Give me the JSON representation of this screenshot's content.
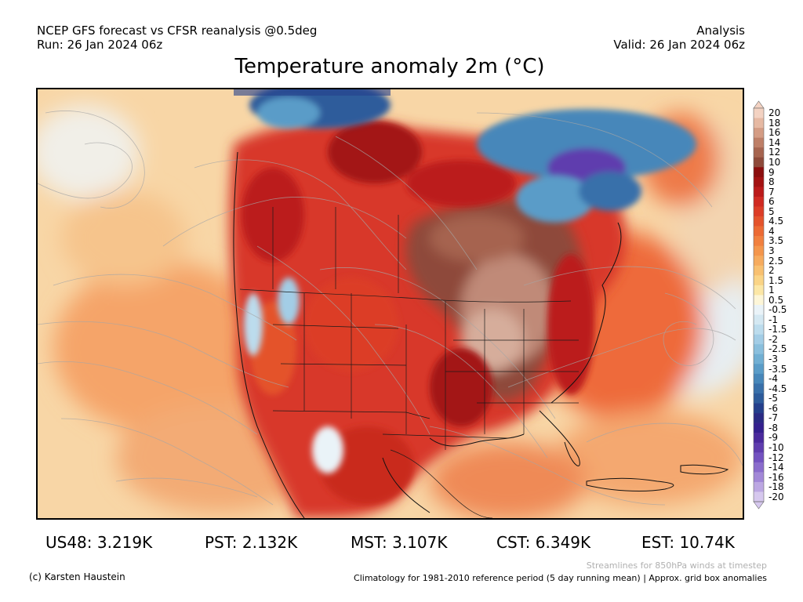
{
  "header": {
    "left_line1": "NCEP GFS forecast vs CFSR reanalysis @0.5deg",
    "left_line2": "Run: 26 Jan 2024 06z",
    "right_line1": "Analysis",
    "right_line2": "Valid: 26 Jan 2024 06z"
  },
  "title": "Temperature anomaly 2m (°C)",
  "legend": {
    "labels": [
      "20",
      "18",
      "16",
      "14",
      "12",
      "10",
      "9",
      "8",
      "7",
      "6",
      "5",
      "4.5",
      "4",
      "3.5",
      "3",
      "2.5",
      "2",
      "1.5",
      "1",
      "0.5",
      "-0.5",
      "-1",
      "-1.5",
      "-2",
      "-2.5",
      "-3",
      "-3.5",
      "-4",
      "-4.5",
      "-5",
      "-6",
      "-7",
      "-8",
      "-9",
      "-10",
      "-12",
      "-14",
      "-16",
      "-18",
      "-20"
    ],
    "colors": [
      "#f3d2c2",
      "#e6b9a3",
      "#d49c84",
      "#be7f67",
      "#a6644f",
      "#8e4a3a",
      "#8b0e0e",
      "#a31212",
      "#bb1a1a",
      "#d02a22",
      "#dc3d27",
      "#e4532c",
      "#ec6a34",
      "#f1803f",
      "#f4964c",
      "#f6ab5e",
      "#f8c070",
      "#fad486",
      "#fce7a6",
      "#fdf6d8",
      "#eaf3f8",
      "#d4e8f2",
      "#bcdced",
      "#a3cde6",
      "#8abfdd",
      "#71afd3",
      "#5a9cc8",
      "#4787ba",
      "#3970aa",
      "#2d5b9b",
      "#243f8c",
      "#2a2a84",
      "#34208e",
      "#4a2a9c",
      "#5f3dae",
      "#7352c0",
      "#8a6ccc",
      "#a288d7",
      "#bca7e2",
      "#d6c8ee"
    ]
  },
  "stats": [
    {
      "label": "US48: 3.219K"
    },
    {
      "label": "PST: 2.132K"
    },
    {
      "label": "MST: 3.107K"
    },
    {
      "label": "CST: 6.349K"
    },
    {
      "label": "EST: 10.74K"
    }
  ],
  "footer": {
    "credit": "(c) Karsten Haustein",
    "note1": "Streamlines for 850hPa winds at timestep",
    "note2": "Climatology for 1981-2010 reference period (5 day running mean) | Approx. grid box anomalies"
  }
}
